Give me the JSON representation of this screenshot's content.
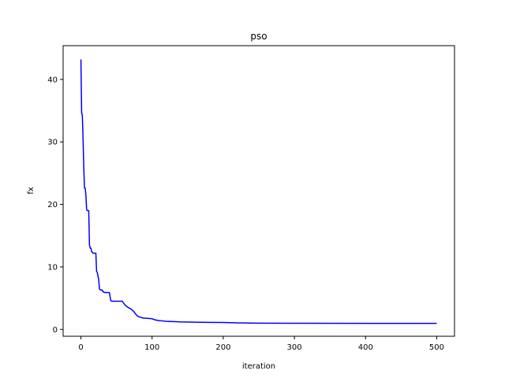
{
  "chart_data": {
    "type": "line",
    "title": "pso",
    "xlabel": "iteration",
    "ylabel": "fx",
    "xlim": [
      -25,
      525
    ],
    "ylim": [
      -1.1,
      45.4
    ],
    "xticks": [
      0,
      100,
      200,
      300,
      400,
      500
    ],
    "yticks": [
      0,
      10,
      20,
      30,
      40
    ],
    "grid": false,
    "legend": "none",
    "series": [
      {
        "color": "#0000ff",
        "x": [
          0,
          1,
          2,
          3,
          4,
          5,
          6,
          7,
          8,
          9,
          10,
          11,
          12,
          13,
          14,
          15,
          16,
          17,
          18,
          19,
          20,
          21,
          22,
          23,
          24,
          25,
          26,
          27,
          28,
          29,
          30,
          31,
          32,
          33,
          34,
          35,
          36,
          37,
          38,
          39,
          40,
          41,
          42,
          43,
          44,
          45,
          50,
          55,
          58,
          60,
          62,
          65,
          68,
          70,
          72,
          74,
          76,
          78,
          80,
          82,
          85,
          88,
          90,
          95,
          100,
          105,
          110,
          115,
          120,
          130,
          140,
          160,
          180,
          200,
          220,
          250,
          300,
          400,
          500
        ],
        "y": [
          43.2,
          34.7,
          34.2,
          30.5,
          26.0,
          22.6,
          22.6,
          21.5,
          19.2,
          19.0,
          19.0,
          19.0,
          13.5,
          13.0,
          13.0,
          12.5,
          12.3,
          12.2,
          12.2,
          12.2,
          12.2,
          12.2,
          9.3,
          9.1,
          8.5,
          8.0,
          6.5,
          6.3,
          6.3,
          6.3,
          6.3,
          6.0,
          6.0,
          5.9,
          5.9,
          5.9,
          5.9,
          5.9,
          5.9,
          5.9,
          5.9,
          5.2,
          4.6,
          4.5,
          4.5,
          4.5,
          4.5,
          4.5,
          4.5,
          4.2,
          3.9,
          3.6,
          3.4,
          3.3,
          3.1,
          2.9,
          2.6,
          2.3,
          2.1,
          2.0,
          1.9,
          1.8,
          1.8,
          1.75,
          1.7,
          1.5,
          1.4,
          1.35,
          1.3,
          1.25,
          1.2,
          1.15,
          1.12,
          1.1,
          1.05,
          1.0,
          0.98,
          0.97,
          0.96
        ]
      }
    ]
  }
}
